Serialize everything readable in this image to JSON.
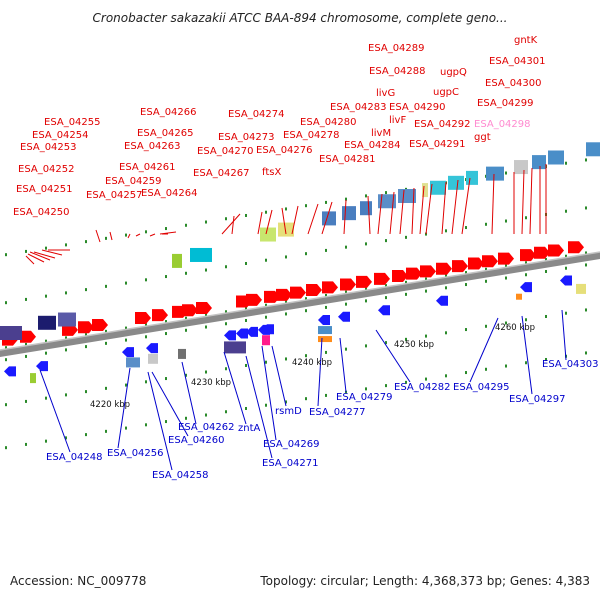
{
  "title": "Cronobacter sakazakii ATCC BAA-894 chromosome, complete geno...",
  "footer": {
    "accession": "Accession: NC_009778",
    "summary": "Topology: circular; Length: 4,368,373 bp; Genes: 4,383"
  },
  "scale_labels": [
    "4220 kbp",
    "4230 kbp",
    "4240 kbp",
    "4250 kbp",
    "4260 kbp"
  ],
  "colors": {
    "forward_label": "#e00000",
    "reverse_label": "#0000cc",
    "highlight_label": "#ff8bd0",
    "forward_arrow": "#ff0000",
    "reverse_arrow": "#1a1aff",
    "backbone": "#8a8a8a"
  },
  "top_labels": [
    "ESA_04255",
    "ESA_04254",
    "ESA_04253",
    "ESA_04252",
    "ESA_04251",
    "ESA_04250",
    "ESA_04257",
    "ESA_04259",
    "ESA_04261",
    "ESA_04263",
    "ESA_04265",
    "ESA_04266",
    "ESA_04264",
    "ESA_04267",
    "ESA_04270",
    "ESA_04273",
    "ESA_04274",
    "ftsX",
    "ESA_04276",
    "ESA_04278",
    "ESA_04280",
    "ESA_04281",
    "ESA_04283",
    "livM",
    "ESA_04284",
    "livG",
    "livF",
    "ESA_04290",
    "ESA_04288",
    "ESA_04289",
    "ESA_04291",
    "ESA_04292",
    "ugpC",
    "ugpQ",
    "ggt",
    "ESA_04298",
    "ESA_04299",
    "ESA_04300",
    "ESA_04301",
    "gntK"
  ],
  "bottom_labels": [
    "ESA_04248",
    "ESA_04256",
    "ESA_04258",
    "ESA_04260",
    "ESA_04262",
    "zntA",
    "ESA_04269",
    "ESA_04271",
    "rsmD",
    "ESA_04277",
    "ESA_04279",
    "ESA_04282",
    "ESA_04295",
    "ESA_04297",
    "ESA_04303"
  ]
}
